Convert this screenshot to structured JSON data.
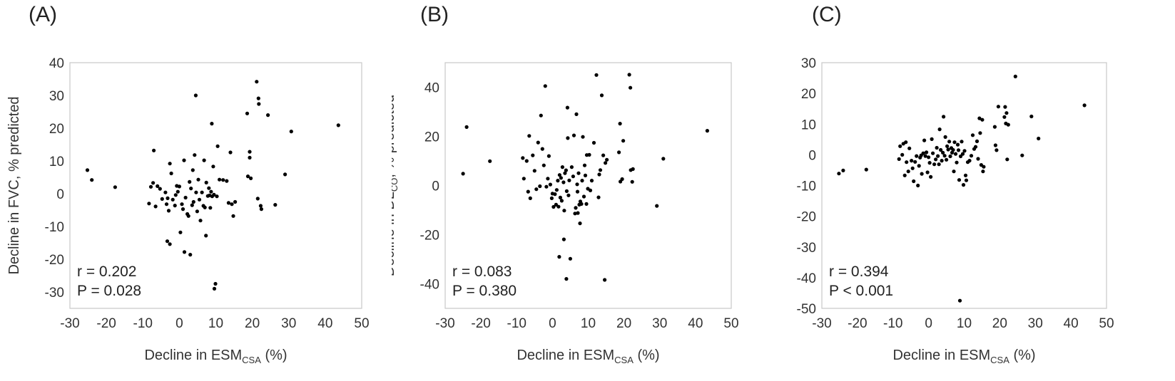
{
  "chart_data": [
    {
      "type": "scatter",
      "panel_label": "(A)",
      "xlabel": {
        "main": "Decline in ESM",
        "sub": "CSA",
        "tail": " (%)"
      },
      "ylabel": {
        "main": "Decline in FVC, % predicted",
        "sub": "",
        "tail": ""
      },
      "xlim": [
        -30,
        50
      ],
      "ylim": [
        -35,
        40
      ],
      "xticks": [
        -30,
        -20,
        -10,
        0,
        10,
        20,
        30,
        40,
        50
      ],
      "yticks": [
        -30,
        -20,
        -10,
        0,
        10,
        20,
        30,
        40
      ],
      "annotation": {
        "r": "r = 0.202",
        "p": "P = 0.028"
      },
      "points": [
        [
          -25.2,
          7.2
        ],
        [
          -24,
          4.2
        ],
        [
          -17.6,
          2
        ],
        [
          -8.3,
          -3
        ],
        [
          -7.8,
          2.1
        ],
        [
          -7.2,
          3.3
        ],
        [
          -7,
          13.2
        ],
        [
          -6.5,
          -3.9
        ],
        [
          -6,
          2.3
        ],
        [
          -5.3,
          1.5
        ],
        [
          -4.7,
          -1.6
        ],
        [
          -3.8,
          0.4
        ],
        [
          -3.5,
          -3.2
        ],
        [
          -3.2,
          -1.4
        ],
        [
          -2.9,
          -5.2
        ],
        [
          -2.6,
          9.2
        ],
        [
          -2.2,
          6.2
        ],
        [
          -1.8,
          -1.8
        ],
        [
          -1.2,
          -3.6
        ],
        [
          -0.7,
          2.4
        ],
        [
          -3.3,
          -14.5
        ],
        [
          -2.6,
          -15.4
        ],
        [
          -1,
          -0.4
        ],
        [
          -0.4,
          0.6
        ],
        [
          0,
          2.2
        ],
        [
          0.3,
          -11.8
        ],
        [
          0.7,
          -3.2
        ],
        [
          1,
          -4.7
        ],
        [
          1.3,
          10.2
        ],
        [
          1.7,
          -1.2
        ],
        [
          1.4,
          -17.8
        ],
        [
          2.2,
          -6.2
        ],
        [
          2.5,
          -6.8
        ],
        [
          2.8,
          3.6
        ],
        [
          3,
          -18.6
        ],
        [
          3.2,
          1.6
        ],
        [
          3.5,
          -3.5
        ],
        [
          3.7,
          7.2
        ],
        [
          3.9,
          -2.5
        ],
        [
          4.2,
          11.8
        ],
        [
          4.5,
          30
        ],
        [
          4.6,
          0.4
        ],
        [
          4.9,
          -5.4
        ],
        [
          5.2,
          4.3
        ],
        [
          5.5,
          -1.8
        ],
        [
          5.8,
          -8.2
        ],
        [
          6.2,
          0.4
        ],
        [
          6.6,
          -3.7
        ],
        [
          6.8,
          10.2
        ],
        [
          7,
          -4.2
        ],
        [
          7.3,
          -12.8
        ],
        [
          7.4,
          3.4
        ],
        [
          7.8,
          -0.7
        ],
        [
          8.1,
          1.7
        ],
        [
          8.3,
          -0.5
        ],
        [
          8.5,
          -4.3
        ],
        [
          8.7,
          0.6
        ],
        [
          8.9,
          21.4
        ],
        [
          9,
          -0.8
        ],
        [
          9.3,
          8.3
        ],
        [
          9.5,
          -0.3
        ],
        [
          9.6,
          -29
        ],
        [
          9.9,
          -27.5
        ],
        [
          10.3,
          -0.8
        ],
        [
          10.5,
          14.5
        ],
        [
          11,
          4.3
        ],
        [
          12,
          4.2
        ],
        [
          13,
          3.9
        ],
        [
          13.5,
          -2.8
        ],
        [
          14,
          12.6
        ],
        [
          14.4,
          -3.2
        ],
        [
          14.8,
          -6.8
        ],
        [
          15.3,
          -2.5
        ],
        [
          18.6,
          24.5
        ],
        [
          18.8,
          5.3
        ],
        [
          19.3,
          12.8
        ],
        [
          19.3,
          11
        ],
        [
          19.6,
          4.7
        ],
        [
          21.2,
          34.2
        ],
        [
          21.7,
          29.1
        ],
        [
          21.8,
          27.4
        ],
        [
          21.5,
          -1.5
        ],
        [
          22.3,
          -3.7
        ],
        [
          22.5,
          -4.7
        ],
        [
          24.3,
          24
        ],
        [
          26.3,
          -3.4
        ],
        [
          29,
          5.9
        ],
        [
          30.7,
          19
        ],
        [
          43.6,
          20.9
        ]
      ]
    },
    {
      "type": "scatter",
      "panel_label": "(B)",
      "xlabel": {
        "main": "Decline in ESM",
        "sub": "CSA",
        "tail": " (%)"
      },
      "ylabel": {
        "main": "Decline in DL",
        "sub": "CO",
        "tail": ", % predicted"
      },
      "xlim": [
        -30,
        50
      ],
      "ylim": [
        -50,
        50
      ],
      "xticks": [
        -30,
        -20,
        -10,
        0,
        10,
        20,
        30,
        40,
        50
      ],
      "yticks": [
        -40,
        -20,
        0,
        20,
        40
      ],
      "annotation": {
        "r": "r = 0.083",
        "p": "P = 0.380"
      },
      "points": [
        [
          -25,
          4.8
        ],
        [
          -24,
          23.8
        ],
        [
          -17.5,
          9.9
        ],
        [
          -8.3,
          11.2
        ],
        [
          -8,
          2.8
        ],
        [
          -7.2,
          10
        ],
        [
          -6.8,
          -2.5
        ],
        [
          -6.5,
          20.2
        ],
        [
          -6.2,
          -5.2
        ],
        [
          -5.5,
          12.3
        ],
        [
          -5,
          6
        ],
        [
          -4.5,
          -1.5
        ],
        [
          -4,
          17.5
        ],
        [
          -3.5,
          -0.3
        ],
        [
          -3.2,
          28.5
        ],
        [
          -2.8,
          14.9
        ],
        [
          -2.4,
          8.2
        ],
        [
          -2,
          40.5
        ],
        [
          -1.7,
          -0.5
        ],
        [
          -1.3,
          2.8
        ],
        [
          -1,
          12
        ],
        [
          -0.6,
          0.4
        ],
        [
          -0.2,
          -5.2
        ],
        [
          0,
          -3.3
        ],
        [
          0.3,
          -8.7
        ],
        [
          0.7,
          -3.5
        ],
        [
          1,
          -7.8
        ],
        [
          1.2,
          -1.8
        ],
        [
          1.5,
          2
        ],
        [
          1.7,
          -8.6
        ],
        [
          2,
          4.3
        ],
        [
          2.2,
          -4.9
        ],
        [
          2.4,
          3.1
        ],
        [
          2.6,
          -6.2
        ],
        [
          1.9,
          -29
        ],
        [
          2.8,
          7.5
        ],
        [
          3.1,
          1.3
        ],
        [
          3.3,
          -10.2
        ],
        [
          3.5,
          5
        ],
        [
          3.2,
          -21.9
        ],
        [
          3.8,
          6.2
        ],
        [
          4,
          -2.3
        ],
        [
          4.2,
          31.7
        ],
        [
          4.3,
          19.3
        ],
        [
          4.5,
          -4
        ],
        [
          4.7,
          2.1
        ],
        [
          3.9,
          -38
        ],
        [
          5,
          -29.8
        ],
        [
          5.4,
          7.5
        ],
        [
          5.8,
          3.7
        ],
        [
          6,
          20.4
        ],
        [
          6.3,
          -11.4
        ],
        [
          6.5,
          -9.1
        ],
        [
          6.7,
          29
        ],
        [
          6.9,
          0.5
        ],
        [
          7,
          -2.5
        ],
        [
          7.1,
          -11.2
        ],
        [
          7.3,
          5
        ],
        [
          7.5,
          -7.8
        ],
        [
          7.7,
          -15.4
        ],
        [
          7.8,
          -6.5
        ],
        [
          8.1,
          -7.5
        ],
        [
          8.3,
          2
        ],
        [
          8.5,
          19.8
        ],
        [
          8.8,
          -4.5
        ],
        [
          9,
          8.2
        ],
        [
          9.2,
          4.1
        ],
        [
          9.5,
          -7.5
        ],
        [
          9.6,
          12.4
        ],
        [
          9.9,
          -1.3
        ],
        [
          10.3,
          12.5
        ],
        [
          10.6,
          -2
        ],
        [
          11,
          2
        ],
        [
          11.6,
          17.4
        ],
        [
          12.3,
          45
        ],
        [
          12.9,
          -4.8
        ],
        [
          13.1,
          4.5
        ],
        [
          13.4,
          6.3
        ],
        [
          13.8,
          36.7
        ],
        [
          14.2,
          12.3
        ],
        [
          14.6,
          -38.4
        ],
        [
          14.8,
          9.2
        ],
        [
          15.2,
          10.5
        ],
        [
          18.6,
          13.5
        ],
        [
          18.9,
          25.2
        ],
        [
          19,
          1.6
        ],
        [
          19.5,
          2.6
        ],
        [
          19.8,
          18.2
        ],
        [
          21.5,
          45.1
        ],
        [
          21.8,
          39.8
        ],
        [
          21.9,
          6.3
        ],
        [
          22.3,
          1.5
        ],
        [
          22.5,
          6.7
        ],
        [
          29.2,
          -8.3
        ],
        [
          31,
          10.9
        ],
        [
          43.3,
          22.3
        ]
      ]
    },
    {
      "type": "scatter",
      "panel_label": "(C)",
      "xlabel": {
        "main": "Decline in ESM",
        "sub": "CSA",
        "tail": " (%)"
      },
      "ylabel": {
        "main": "Decline in BMI (%)",
        "sub": "",
        "tail": ""
      },
      "xlim": [
        -30,
        50
      ],
      "ylim": [
        -50,
        30
      ],
      "xticks": [
        -30,
        -20,
        -10,
        0,
        10,
        20,
        30,
        40,
        50
      ],
      "yticks": [
        -50,
        -40,
        -30,
        -20,
        -10,
        0,
        10,
        20,
        30
      ],
      "annotation": {
        "r": "r = 0.394",
        "p": "P < 0.001"
      },
      "points": [
        [
          -25.2,
          -6.1
        ],
        [
          -24,
          -5.1
        ],
        [
          -17.5,
          -4.8
        ],
        [
          -8.3,
          -1.4
        ],
        [
          -8,
          2.8
        ],
        [
          -7.4,
          0
        ],
        [
          -7.1,
          3.6
        ],
        [
          -6.7,
          -6.7
        ],
        [
          -6.4,
          4.1
        ],
        [
          -6.2,
          -2.4
        ],
        [
          -5.7,
          -5.4
        ],
        [
          -5.4,
          2.1
        ],
        [
          -4.8,
          -1.9
        ],
        [
          -4.5,
          -4.4
        ],
        [
          -4.2,
          -8.6
        ],
        [
          -3.8,
          -2.3
        ],
        [
          -3.4,
          -0.4
        ],
        [
          -3,
          -10
        ],
        [
          -2.7,
          -3.6
        ],
        [
          -2.4,
          -0.9
        ],
        [
          -2.1,
          -0.2
        ],
        [
          -1.9,
          -6.2
        ],
        [
          -1.5,
          0.5
        ],
        [
          -1.2,
          4.7
        ],
        [
          -0.9,
          -0.4
        ],
        [
          -0.6,
          0.8
        ],
        [
          -0.3,
          -5.7
        ],
        [
          0,
          -0.8
        ],
        [
          0.3,
          -2.6
        ],
        [
          0.6,
          -7.2
        ],
        [
          0.9,
          5.1
        ],
        [
          1.2,
          0.5
        ],
        [
          1.6,
          -3.1
        ],
        [
          2,
          -1.5
        ],
        [
          2.3,
          2.3
        ],
        [
          2.6,
          -0.4
        ],
        [
          2.9,
          -3.1
        ],
        [
          3.1,
          8.3
        ],
        [
          3.4,
          1.6
        ],
        [
          3.7,
          -1.9
        ],
        [
          4,
          0.7
        ],
        [
          4.2,
          12.4
        ],
        [
          4.5,
          -0.3
        ],
        [
          4.7,
          5.8
        ],
        [
          5,
          -1.6
        ],
        [
          5.2,
          2.8
        ],
        [
          5.5,
          1.7
        ],
        [
          5.8,
          4.3
        ],
        [
          6.1,
          -0.5
        ],
        [
          6.4,
          2.2
        ],
        [
          6.6,
          0.7
        ],
        [
          6.9,
          1.6
        ],
        [
          7.1,
          -5.4
        ],
        [
          7.3,
          4.1
        ],
        [
          7.6,
          0.3
        ],
        [
          7.9,
          -2.5
        ],
        [
          8.2,
          3.3
        ],
        [
          8.4,
          1.5
        ],
        [
          8.6,
          -8.2
        ],
        [
          8.8,
          -47.5
        ],
        [
          9,
          -0.5
        ],
        [
          9.3,
          4.3
        ],
        [
          9.6,
          0.3
        ],
        [
          9.8,
          -9.8
        ],
        [
          10.1,
          1.3
        ],
        [
          10.4,
          -6.7
        ],
        [
          10.6,
          -8.3
        ],
        [
          11,
          -2.4
        ],
        [
          11.5,
          -1.9
        ],
        [
          12,
          -0.3
        ],
        [
          12.4,
          6.4
        ],
        [
          12.8,
          1.9
        ],
        [
          13.2,
          2.6
        ],
        [
          13.6,
          4.4
        ],
        [
          13.9,
          -1.3
        ],
        [
          14.3,
          11.9
        ],
        [
          14.5,
          7.1
        ],
        [
          14.8,
          -3.3
        ],
        [
          15.1,
          11.4
        ],
        [
          15.3,
          -5.4
        ],
        [
          15.5,
          -3.9
        ],
        [
          18.6,
          9.1
        ],
        [
          18.8,
          3.1
        ],
        [
          19.1,
          1.5
        ],
        [
          19.6,
          15.7
        ],
        [
          21.3,
          12.3
        ],
        [
          21.5,
          15.6
        ],
        [
          21.7,
          10.2
        ],
        [
          21.9,
          13.6
        ],
        [
          22.1,
          -1.5
        ],
        [
          22.4,
          9.8
        ],
        [
          24.4,
          25.5
        ],
        [
          26.3,
          -0.2
        ],
        [
          28.9,
          12.5
        ],
        [
          30.9,
          5.3
        ],
        [
          43.8,
          16.1
        ]
      ]
    }
  ]
}
